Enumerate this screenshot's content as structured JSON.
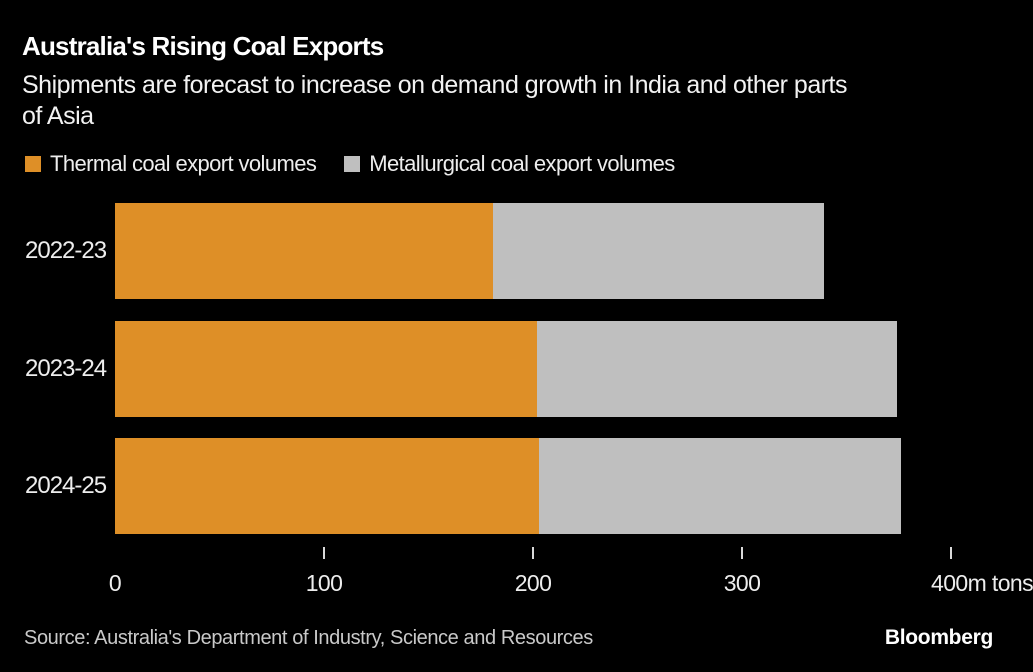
{
  "title": "Australia's Rising Coal Exports",
  "subtitle_lines": [
    "Shipments are forecast to increase on demand growth in India and other parts",
    "of Asia"
  ],
  "legend": [
    {
      "label": "Thermal coal export volumes",
      "color": "#DE8F27"
    },
    {
      "label": "Metallurgical coal export volumes",
      "color": "#BFBFBF"
    }
  ],
  "source": "Source: Australia's Department of Industry, Science and Resources",
  "brand": "Bloomberg",
  "colors": {
    "background": "#000000",
    "thermal": "#DE8F27",
    "metallurgical": "#BFBFBF",
    "title_text": "#FFFFFF",
    "body_text": "#EDEDED",
    "source_text": "#C9C9C9",
    "tick": "#D9D9D9"
  },
  "chart_data": {
    "type": "bar",
    "orientation": "horizontal",
    "stacked": true,
    "title": "Australia's Rising Coal Exports",
    "subtitle": "Shipments are forecast to increase on demand growth in India and other parts of Asia",
    "categories": [
      "2022-23",
      "2023-24",
      "2024-25"
    ],
    "series": [
      {
        "name": "Thermal coal export volumes",
        "color": "#DE8F27",
        "values": [
          181,
          202,
          203
        ]
      },
      {
        "name": "Metallurgical coal export volumes",
        "color": "#BFBFBF",
        "values": [
          158,
          172,
          173
        ]
      }
    ],
    "totals": [
      339,
      374,
      376
    ],
    "xlim": [
      0,
      400
    ],
    "x_ticks": [
      0,
      100,
      200,
      300,
      400
    ],
    "x_tick_labels": [
      "0",
      "100",
      "200",
      "300",
      "400m tons"
    ],
    "unit": "m tons",
    "legend_position": "top",
    "grid": false
  }
}
